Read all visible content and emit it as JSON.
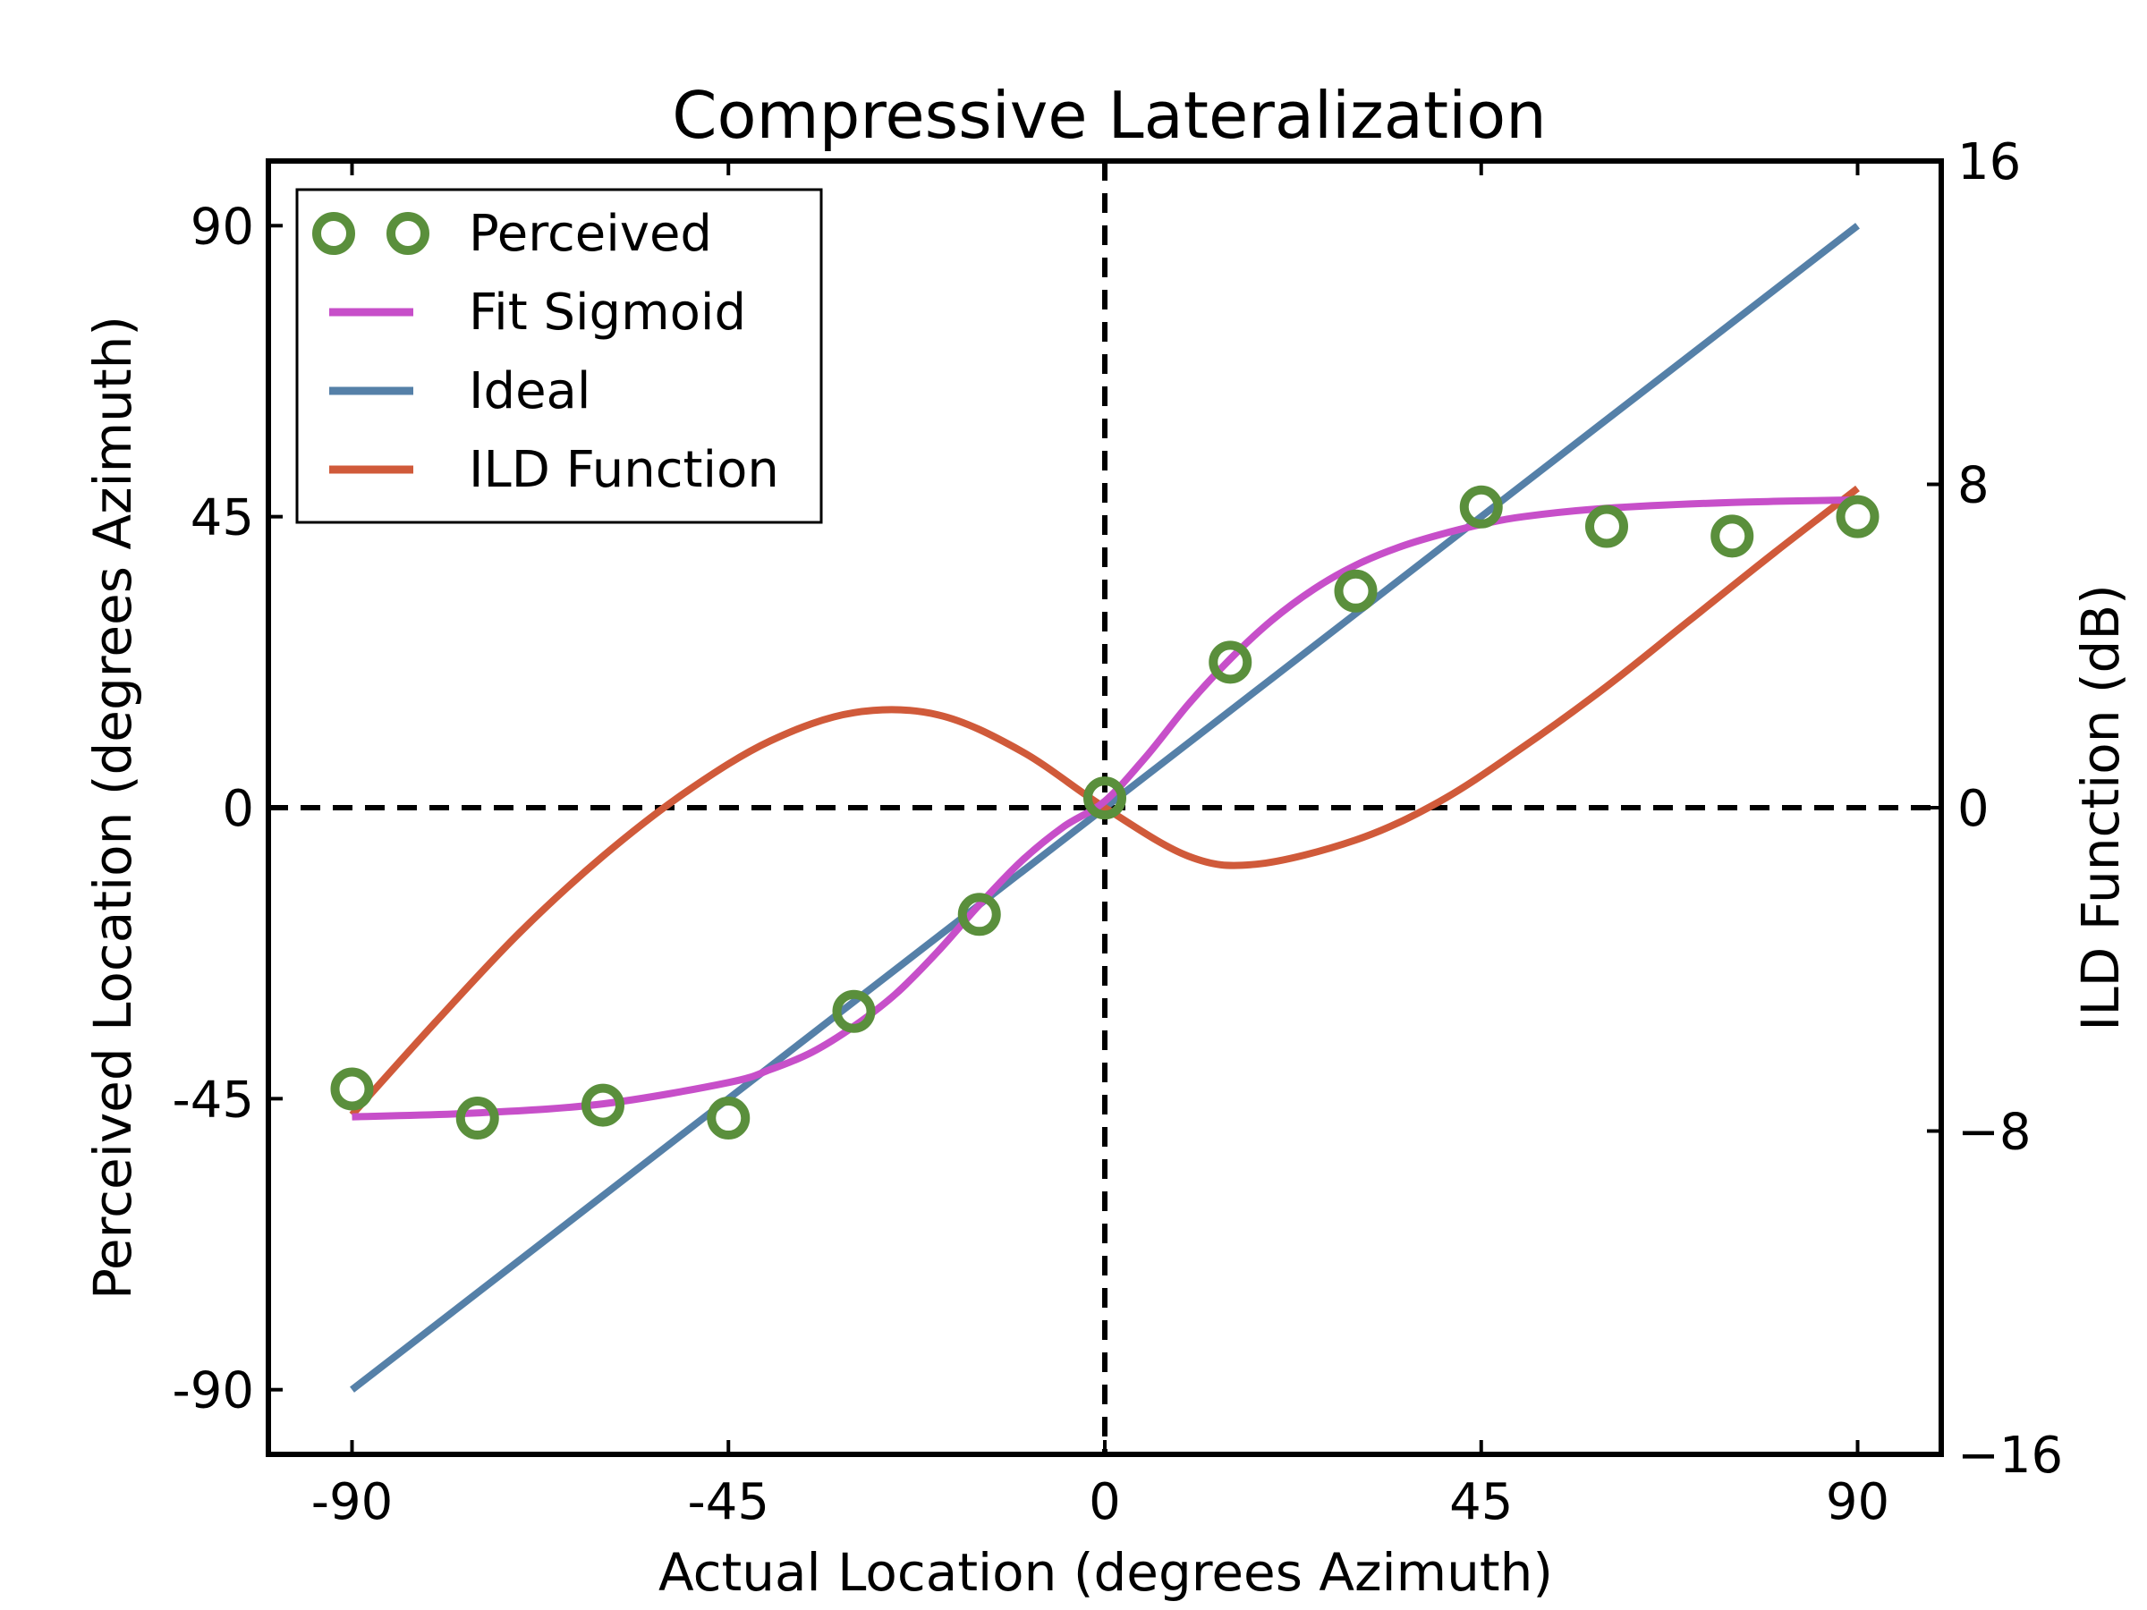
{
  "chart_data": {
    "type": "line",
    "title": "Compressive Lateralization",
    "xlabel": "Actual Location (degrees Azimuth)",
    "ylabel": "Perceived Location (degrees Azimuth)",
    "y2label": "ILD Function (dB)",
    "xlim": [
      -100,
      100
    ],
    "ylim": [
      -100,
      100
    ],
    "y2lim": [
      -16,
      16
    ],
    "xticks": [
      -90,
      -45,
      0,
      45,
      90
    ],
    "xtick_labels": [
      "-90",
      "-45",
      "0",
      "45",
      "90"
    ],
    "yticks": [
      -90,
      -45,
      0,
      45,
      90
    ],
    "ytick_labels": [
      "-90",
      "-45",
      "0",
      "45",
      "90"
    ],
    "y2ticks": [
      -16,
      -8,
      0,
      8,
      16
    ],
    "y2tick_labels": [
      "−16",
      "−8",
      "0",
      "8",
      "16"
    ],
    "reference_lines": {
      "x": 0,
      "y": 0,
      "style": "dashed",
      "color": "#000000"
    },
    "legend": {
      "position": "upper-left",
      "entries": [
        "Perceived",
        "Fit Sigmoid",
        "Ideal",
        "ILD Function"
      ]
    },
    "series": [
      {
        "name": "Perceived",
        "kind": "scatter",
        "marker": "open-circle",
        "color": "#5a8f3c",
        "x": [
          -90,
          -75,
          -60,
          -45,
          -30,
          -15,
          0,
          15,
          30,
          45,
          60,
          75,
          90
        ],
        "y": [
          -43.5,
          -48,
          -46,
          -48,
          -31.5,
          -16.5,
          1.5,
          22.5,
          33.5,
          46.5,
          43.5,
          42,
          45
        ]
      },
      {
        "name": "Fit Sigmoid",
        "kind": "line",
        "color": "#c74fc9",
        "x": [
          -90,
          -75,
          -60,
          -45,
          -40,
          -35,
          -30,
          -25,
          -20,
          -15,
          -10,
          -5,
          0,
          5,
          10,
          15,
          20,
          25,
          30,
          35,
          40,
          45,
          50,
          60,
          75,
          90
        ],
        "y": [
          -47.8,
          -47.2,
          -45.8,
          -42.5,
          -40.5,
          -37.8,
          -33.8,
          -28.8,
          -22.3,
          -15,
          -8.3,
          -3,
          1,
          8,
          16,
          23,
          29,
          33.8,
          37.5,
          40.2,
          42.2,
          43.8,
          45,
          46.3,
          47.2,
          47.6
        ]
      },
      {
        "name": "Ideal",
        "kind": "line",
        "color": "#5580a8",
        "x": [
          -90,
          90
        ],
        "y": [
          -90,
          90
        ]
      },
      {
        "name": "ILD Function",
        "kind": "line",
        "axis": "right",
        "color": "#d05a3a",
        "x": [
          -90,
          -80,
          -70,
          -60,
          -50,
          -40,
          -30,
          -20,
          -10,
          0,
          10,
          18,
          30,
          40,
          50,
          60,
          70,
          80,
          90
        ],
        "y": [
          -7.6,
          -5.3,
          -3.1,
          -1.2,
          0.4,
          1.65,
          2.35,
          2.3,
          1.4,
          0.0,
          -1.2,
          -1.4,
          -0.8,
          0.15,
          1.5,
          3.0,
          4.65,
          6.3,
          7.9
        ]
      }
    ]
  }
}
